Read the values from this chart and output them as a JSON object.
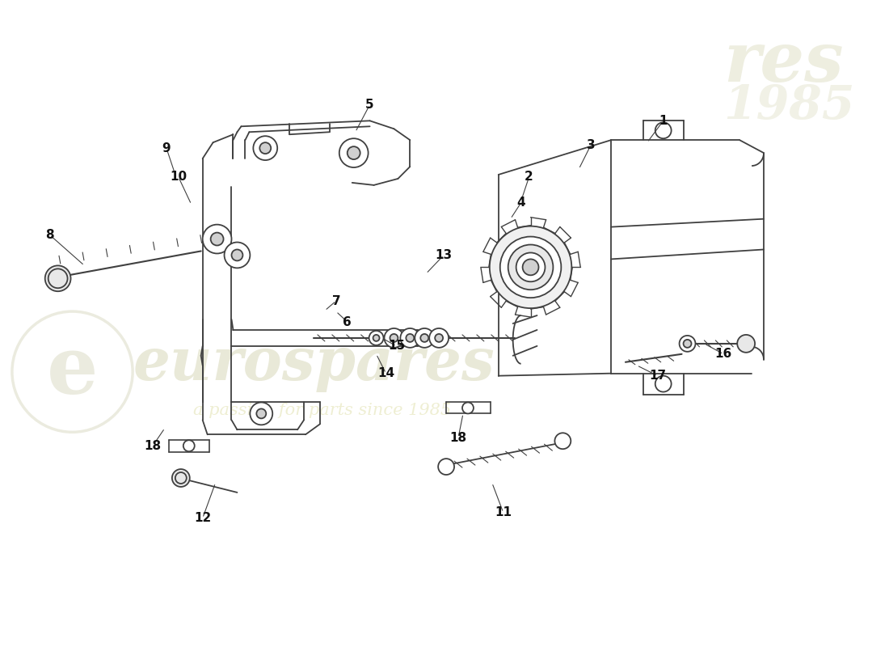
{
  "background_color": "#ffffff",
  "line_color": "#404040",
  "label_color": "#111111",
  "watermark_text1": "eurospares",
  "watermark_text2": "a passion for parts since 1985",
  "labels": [
    [
      1,
      825,
      148,
      805,
      175
    ],
    [
      2,
      658,
      218,
      648,
      248
    ],
    [
      3,
      735,
      178,
      720,
      208
    ],
    [
      4,
      648,
      250,
      635,
      270
    ],
    [
      5,
      460,
      128,
      442,
      162
    ],
    [
      6,
      432,
      398,
      418,
      385
    ],
    [
      7,
      418,
      372,
      404,
      384
    ],
    [
      8,
      62,
      290,
      105,
      328
    ],
    [
      9,
      207,
      182,
      218,
      215
    ],
    [
      10,
      222,
      218,
      238,
      252
    ],
    [
      11,
      626,
      635,
      612,
      598
    ],
    [
      12,
      252,
      642,
      268,
      598
    ],
    [
      13,
      552,
      315,
      530,
      338
    ],
    [
      14,
      480,
      462,
      468,
      438
    ],
    [
      15,
      493,
      428,
      475,
      418
    ],
    [
      16,
      900,
      438,
      876,
      425
    ],
    [
      17,
      818,
      465,
      792,
      452
    ],
    [
      18,
      190,
      552,
      205,
      530
    ],
    [
      18,
      570,
      542,
      576,
      512
    ]
  ]
}
